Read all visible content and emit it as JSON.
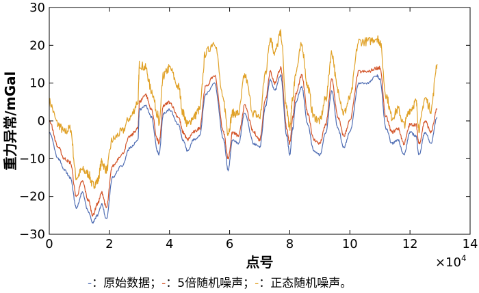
{
  "chart_data": {
    "type": "line",
    "xlabel": "点号",
    "ylabel": "重力异常/mGal",
    "x_exponent": "×10",
    "x_exponent_power": "4",
    "xlim": [
      0,
      14
    ],
    "ylim": [
      -30,
      30
    ],
    "x_ticks": [
      0,
      2,
      4,
      6,
      8,
      10,
      12,
      14
    ],
    "x_tick_labels": [
      "0",
      "2",
      "4",
      "6",
      "8",
      "10",
      "12",
      "14"
    ],
    "y_ticks": [
      -30,
      -20,
      -10,
      0,
      10,
      20,
      30
    ],
    "y_tick_labels": [
      "−30",
      "−20",
      "−10",
      "0",
      "10",
      "20",
      "30"
    ],
    "grid": false,
    "legend_position": "bottom",
    "x": [
      0,
      0.3,
      0.5,
      0.7,
      0.9,
      1.1,
      1.3,
      1.45,
      1.6,
      1.75,
      1.9,
      2.1,
      2.4,
      2.7,
      2.95,
      3.0,
      3.2,
      3.4,
      3.6,
      3.65,
      3.8,
      4.0,
      4.3,
      4.45,
      4.6,
      4.8,
      5.0,
      5.2,
      5.5,
      5.8,
      5.95,
      6.1,
      6.3,
      6.5,
      6.8,
      7.0,
      7.2,
      7.35,
      7.5,
      7.7,
      7.9,
      8.0,
      8.1,
      8.2,
      8.4,
      8.6,
      8.8,
      9.0,
      9.2,
      9.4,
      9.6,
      9.8,
      10.0,
      10.3,
      10.6,
      10.9,
      11.0,
      11.2,
      11.4,
      11.6,
      11.8,
      12.0,
      12.2,
      12.3,
      12.5,
      12.7,
      12.9
    ],
    "series": [
      {
        "name": "原始数据",
        "color": "#4f6db3",
        "values": [
          -3,
          -10,
          -13,
          -15,
          -23,
          -19,
          -24,
          -27,
          -25,
          -22,
          -26,
          -15,
          -12,
          -7,
          -5,
          3,
          4,
          1,
          -8,
          -9,
          2,
          3,
          -1,
          -5,
          -8,
          -5,
          -4,
          7,
          10,
          -5,
          -13,
          -5,
          -6,
          2,
          -6,
          -7,
          4,
          11,
          8,
          12,
          -4,
          -9,
          -2,
          5,
          9,
          -1,
          -8,
          -9,
          -3,
          8,
          -2,
          -7,
          -3,
          10,
          10,
          12,
          11,
          -2,
          -6,
          -5,
          -9,
          -3,
          -4,
          -9,
          -3,
          -6,
          1
        ]
      },
      {
        "name": "5倍随机噪声",
        "color": "#d3552a",
        "values": [
          0,
          -7,
          -10,
          -11,
          -20,
          -16,
          -21,
          -25,
          -22,
          -19,
          -23,
          -12,
          -9,
          -4,
          -2,
          5,
          7,
          3,
          -5,
          -6,
          4,
          5,
          1,
          -3,
          -5,
          -3,
          -2,
          9,
          12,
          -3,
          -10,
          -3,
          -4,
          4,
          -3,
          -5,
          6,
          13,
          10,
          14,
          -2,
          -6,
          1,
          7,
          12,
          2,
          -5,
          -6,
          -1,
          11,
          1,
          -4,
          0,
          13,
          13,
          14,
          14,
          1,
          -3,
          -2,
          -6,
          -1,
          -1,
          -6,
          0,
          -3,
          3
        ]
      },
      {
        "name": "正态随机噪声",
        "color": "#e0a127",
        "values": [
          5,
          -1,
          -3,
          -2,
          -15,
          -13,
          -14,
          -17,
          -16,
          -11,
          -13,
          -5,
          -3,
          1,
          5,
          15,
          14,
          8,
          2,
          -1,
          12,
          14,
          9,
          2,
          -1,
          1,
          3,
          18,
          21,
          5,
          -3,
          2,
          2,
          12,
          2,
          1,
          13,
          22,
          18,
          23,
          3,
          -2,
          6,
          13,
          20,
          9,
          1,
          0,
          6,
          18,
          8,
          2,
          6,
          21,
          21,
          22,
          21,
          7,
          1,
          3,
          -1,
          3,
          5,
          -2,
          6,
          3,
          15
        ]
      }
    ]
  },
  "legend": {
    "items": [
      {
        "sym": "-",
        "colon": "：",
        "label": "原始数据；"
      },
      {
        "sym": "-",
        "colon": "：",
        "label": "5倍随机噪声；"
      },
      {
        "sym": "-",
        "colon": "：",
        "label": "正态随机噪声。"
      }
    ]
  }
}
